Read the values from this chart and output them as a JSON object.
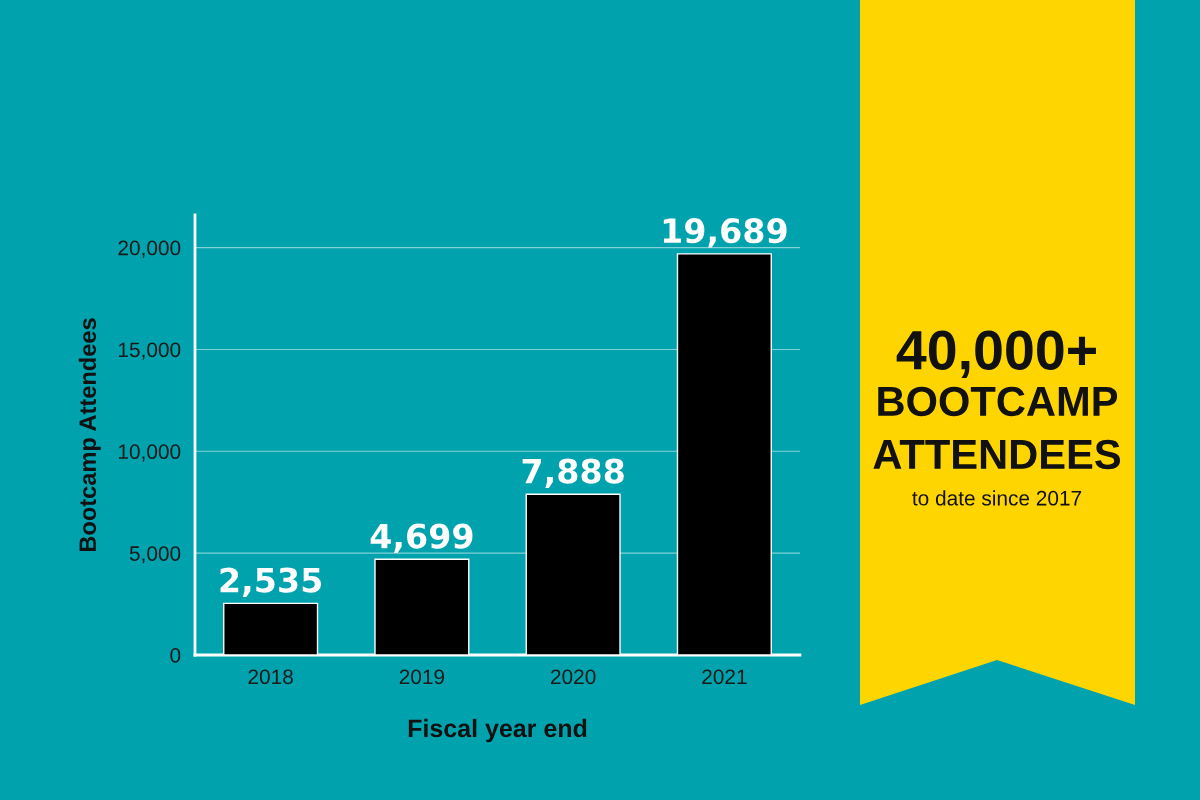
{
  "chart_data": {
    "type": "bar",
    "xlabel": "Fiscal year end",
    "ylabel": "Bootcamp Attendees",
    "categories": [
      "2018",
      "2019",
      "2020",
      "2021"
    ],
    "values": [
      2535,
      4699,
      7888,
      19689
    ],
    "color": "#000000",
    "ylim": [
      0,
      21600
    ],
    "yticks": [
      {
        "value": 0,
        "label": "0"
      },
      {
        "value": 5000,
        "label": "5,000"
      },
      {
        "value": 10000,
        "label": "10,000"
      },
      {
        "value": 15000,
        "label": "15,000"
      },
      {
        "value": 20000,
        "label": "20,000"
      }
    ],
    "value_labels": [
      "2,535",
      "4,699",
      "7,888",
      "19,689"
    ],
    "grid": "y",
    "legend": false,
    "annotations": [
      "40,000+",
      "BOOTCAMP",
      "ATTENDEES",
      "to date since 2017"
    ]
  }
}
